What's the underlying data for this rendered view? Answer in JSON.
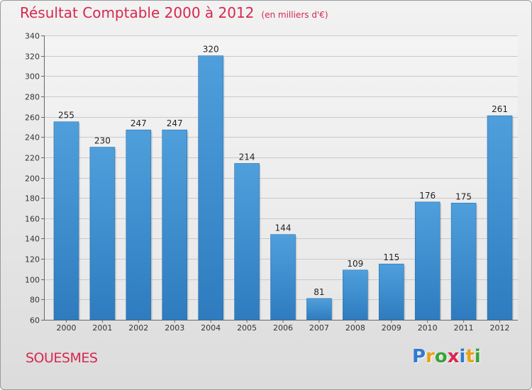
{
  "header": {
    "title": "Résultat Comptable 2000 à 2012",
    "subtitle": "(en milliers d'€)"
  },
  "footer": {
    "commune": "SOUESMES",
    "logo": {
      "letters": [
        {
          "char": "P",
          "color": "#2f7ad1"
        },
        {
          "char": "r",
          "color": "#e8a214"
        },
        {
          "char": "o",
          "color": "#3aa23a"
        },
        {
          "char": "x",
          "color": "#d6284f"
        },
        {
          "char": "i",
          "color": "#2f7ad1"
        },
        {
          "char": "t",
          "color": "#e8a214"
        },
        {
          "char": "i",
          "color": "#3aa23a"
        }
      ]
    }
  },
  "chart_data": {
    "type": "bar",
    "title": "Résultat Comptable 2000 à 2012",
    "subtitle": "(en milliers d'€)",
    "categories": [
      "2000",
      "2001",
      "2002",
      "2003",
      "2004",
      "2005",
      "2006",
      "2007",
      "2008",
      "2009",
      "2010",
      "2011",
      "2012"
    ],
    "values": [
      255,
      230,
      247,
      247,
      320,
      214,
      144,
      81,
      109,
      115,
      176,
      175,
      261
    ],
    "ylim": [
      60,
      340
    ],
    "ytick_step": 20,
    "grid": true,
    "bar_color": "#4f9fdc",
    "bar_color_dark": "#2e7cbf",
    "xlabel": "",
    "ylabel": ""
  }
}
